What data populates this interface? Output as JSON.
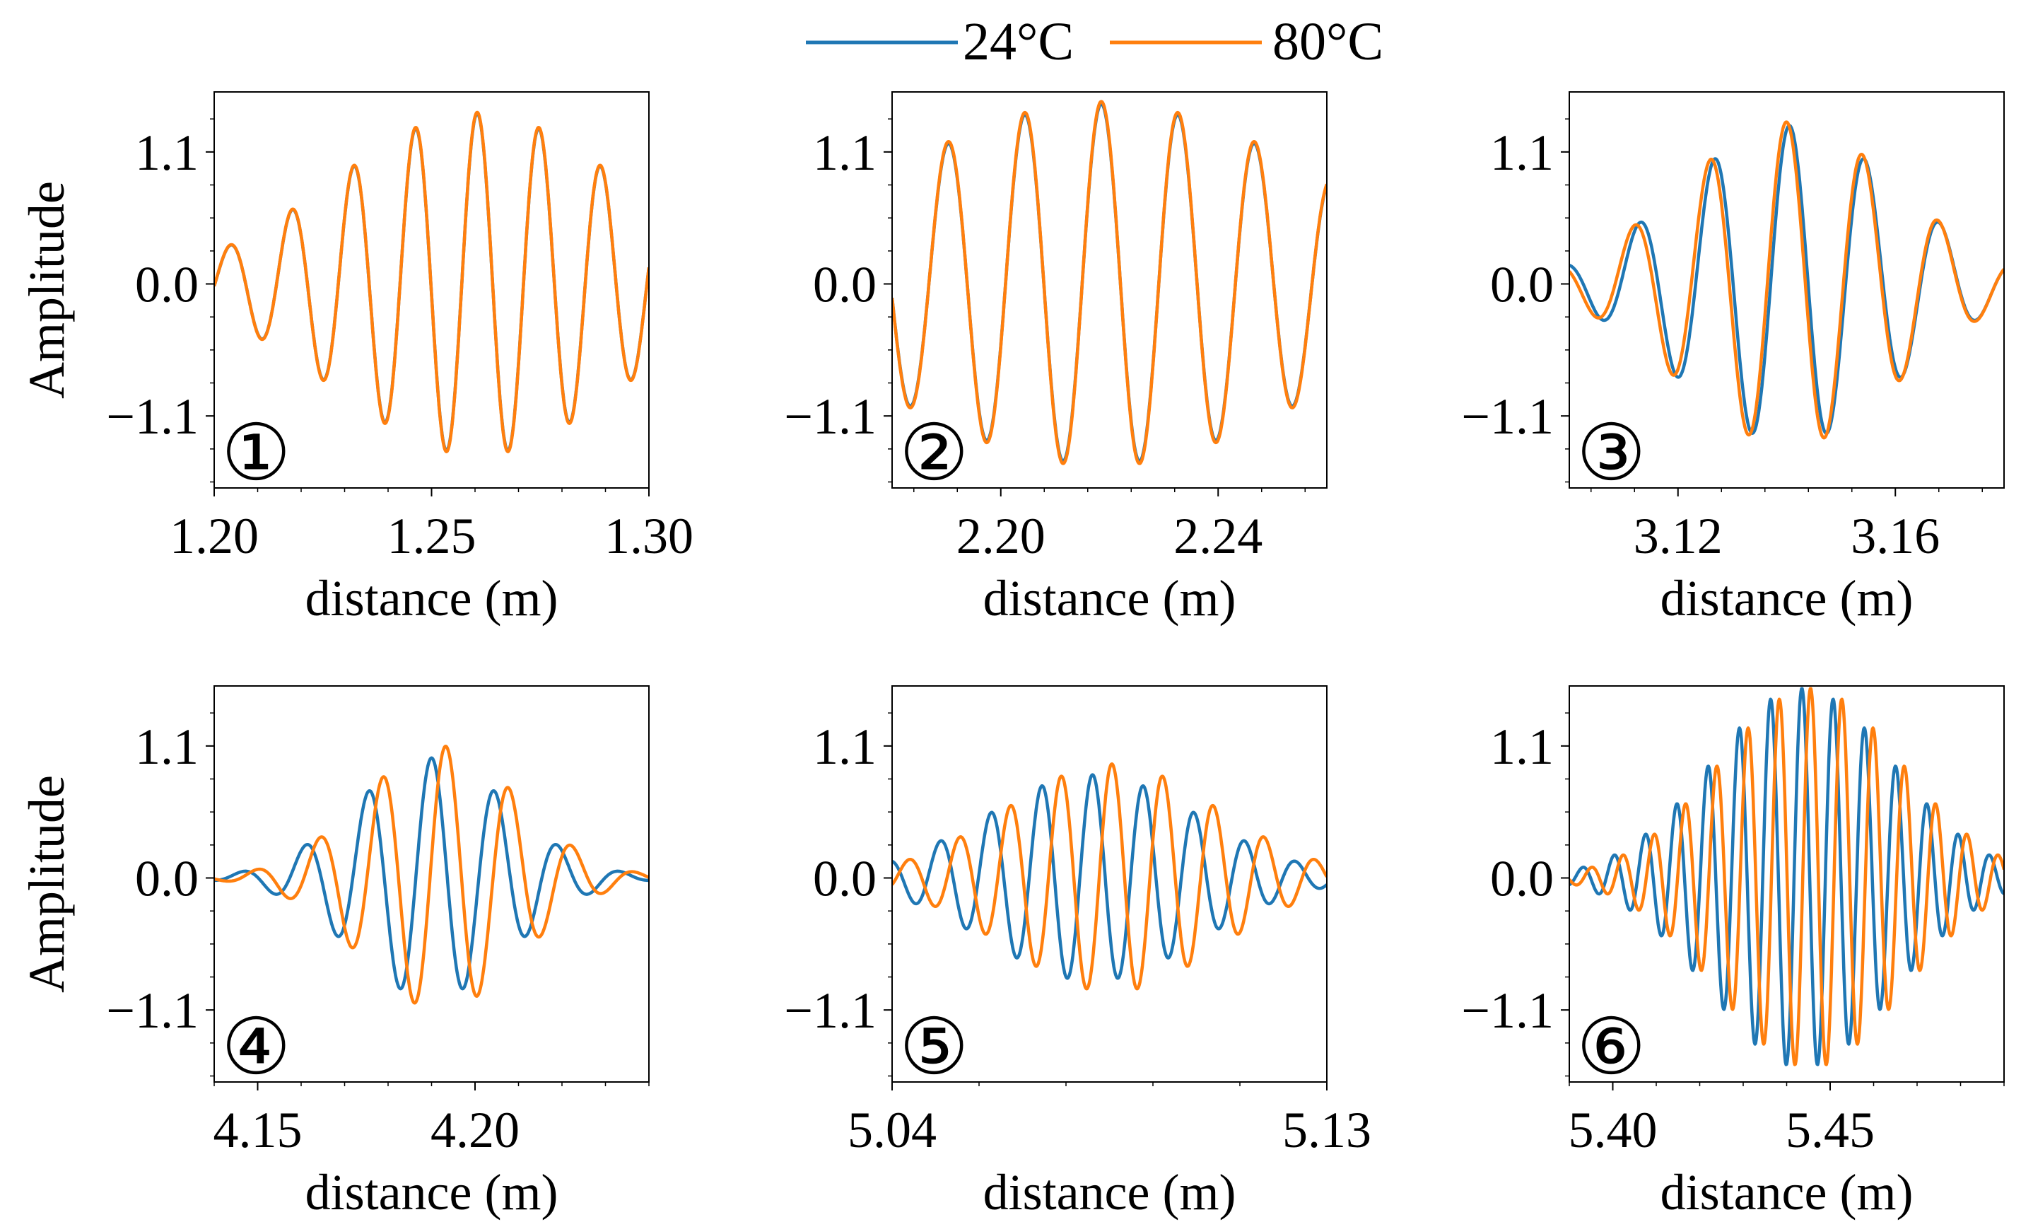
{
  "legend": {
    "entries": [
      {
        "label": "24°C",
        "color": "#1f77b4"
      },
      {
        "label": "80°C",
        "color": "#ff7f0e"
      }
    ]
  },
  "chart_data": [
    {
      "type": "line",
      "panel_label": "①",
      "xlabel": "distance (m)",
      "ylabel": "Amplitude",
      "xlim": [
        1.2,
        1.3
      ],
      "ylim": [
        -1.7,
        1.6
      ],
      "xticks": [
        1.2,
        1.25,
        1.3
      ],
      "xtick_labels": [
        "1.20",
        "1.25",
        "1.30"
      ],
      "yticks": [
        1.1,
        0.0,
        -1.1
      ],
      "ytick_labels": [
        "1.1",
        "0.0",
        "−1.1"
      ],
      "series": [
        {
          "name": "24°C",
          "color": "#1f77b4",
          "amplitude": 1.42,
          "center": 1.2605,
          "sigma": 0.033,
          "wavelength": 0.0142,
          "phase": 0.0,
          "skew": 0.0
        },
        {
          "name": "80°C",
          "color": "#ff7f0e",
          "amplitude": 1.43,
          "center": 1.2605,
          "sigma": 0.033,
          "wavelength": 0.0142,
          "phase": 0.0,
          "skew": 0.0
        }
      ]
    },
    {
      "type": "line",
      "panel_label": "②",
      "xlabel": "distance (m)",
      "ylabel": "",
      "xlim": [
        2.18,
        2.26
      ],
      "ylim": [
        -1.7,
        1.6
      ],
      "xticks": [
        2.2,
        2.24
      ],
      "xtick_labels": [
        "2.20",
        "2.24"
      ],
      "yticks": [
        1.1,
        0.0,
        -1.1
      ],
      "ytick_labels": [
        "1.1",
        "0.0",
        "−1.1"
      ],
      "series": [
        {
          "name": "24°C",
          "color": "#1f77b4",
          "amplitude": 1.5,
          "center": 2.2185,
          "sigma": 0.04,
          "wavelength": 0.0141,
          "phase": 0.0,
          "skew": 0.0
        },
        {
          "name": "80°C",
          "color": "#ff7f0e",
          "amplitude": 1.52,
          "center": 2.2185,
          "sigma": 0.04,
          "wavelength": 0.0141,
          "phase": 0.0,
          "skew": 0.0
        }
      ]
    },
    {
      "type": "line",
      "panel_label": "③",
      "xlabel": "distance (m)",
      "ylabel": "",
      "xlim": [
        3.1,
        3.18
      ],
      "ylim": [
        -1.7,
        1.6
      ],
      "xticks": [
        3.12,
        3.16
      ],
      "xtick_labels": [
        "3.12",
        "3.16"
      ],
      "yticks": [
        1.1,
        0.0,
        -1.1
      ],
      "ytick_labels": [
        "1.1",
        "0.0",
        "−1.1"
      ],
      "series": [
        {
          "name": "24°C",
          "color": "#1f77b4",
          "amplitude": 1.32,
          "center": 3.1405,
          "sigma": 0.02,
          "wavelength": 0.0138,
          "phase": 0.0,
          "skew": 0.0
        },
        {
          "name": "80°C",
          "color": "#ff7f0e",
          "amplitude": 1.35,
          "center": 3.1405,
          "sigma": 0.02,
          "wavelength": 0.014,
          "phase": 0.25,
          "skew": 0.0
        }
      ]
    },
    {
      "type": "line",
      "panel_label": "④",
      "xlabel": "distance (m)",
      "ylabel": "Amplitude",
      "xlim": [
        4.14,
        4.24
      ],
      "ylim": [
        -1.7,
        1.6
      ],
      "xticks": [
        4.15,
        4.2
      ],
      "xtick_labels": [
        "4.15",
        "4.20"
      ],
      "yticks": [
        1.1,
        0.0,
        -1.1
      ],
      "ytick_labels": [
        "1.1",
        "0.0",
        "−1.1"
      ],
      "series": [
        {
          "name": "24°C",
          "color": "#1f77b4",
          "amplitude": 1.0,
          "center": 4.19,
          "sigma": 0.018,
          "wavelength": 0.0145,
          "phase": 0.0,
          "skew": 0.0
        },
        {
          "name": "80°C",
          "color": "#ff7f0e",
          "amplitude": 1.1,
          "center": 4.192,
          "sigma": 0.018,
          "wavelength": 0.0145,
          "phase": -0.55,
          "skew": 0.0
        }
      ]
    },
    {
      "type": "line",
      "panel_label": "⑤",
      "xlabel": "distance (m)",
      "ylabel": "",
      "xlim": [
        5.04,
        5.13
      ],
      "ylim": [
        -1.7,
        1.6
      ],
      "xticks": [
        5.04,
        5.13
      ],
      "xtick_labels": [
        "5.04",
        "5.13"
      ],
      "yticks": [
        1.1,
        0.0,
        -1.1
      ],
      "ytick_labels": [
        "1.1",
        "0.0",
        "−1.1"
      ],
      "series": [
        {
          "name": "24°C",
          "color": "#1f77b4",
          "amplitude": 0.86,
          "center": 5.0815,
          "sigma": 0.022,
          "wavelength": 0.0105,
          "phase": 0.0,
          "skew": 0.0
        },
        {
          "name": "80°C",
          "color": "#ff7f0e",
          "amplitude": 0.95,
          "center": 5.0855,
          "sigma": 0.022,
          "wavelength": 0.0105,
          "phase": 0.0,
          "skew": 0.0
        }
      ]
    },
    {
      "type": "line",
      "panel_label": "⑥",
      "xlabel": "distance (m)",
      "ylabel": "",
      "xlim": [
        5.39,
        5.49
      ],
      "ylim": [
        -1.7,
        1.6
      ],
      "xticks": [
        5.4,
        5.45
      ],
      "xtick_labels": [
        "5.40",
        "5.45"
      ],
      "yticks": [
        1.1,
        0.0,
        -1.1
      ],
      "ytick_labels": [
        "1.1",
        "0.0",
        "−1.1"
      ],
      "series": [
        {
          "name": "24°C",
          "color": "#1f77b4",
          "amplitude": 1.58,
          "center": 5.4435,
          "sigma": 0.021,
          "wavelength": 0.0072,
          "phase": 0.0,
          "skew": 0.0
        },
        {
          "name": "80°C",
          "color": "#ff7f0e",
          "amplitude": 1.58,
          "center": 5.4455,
          "sigma": 0.021,
          "wavelength": 0.0072,
          "phase": 0.0,
          "skew": 0.0
        }
      ]
    }
  ]
}
